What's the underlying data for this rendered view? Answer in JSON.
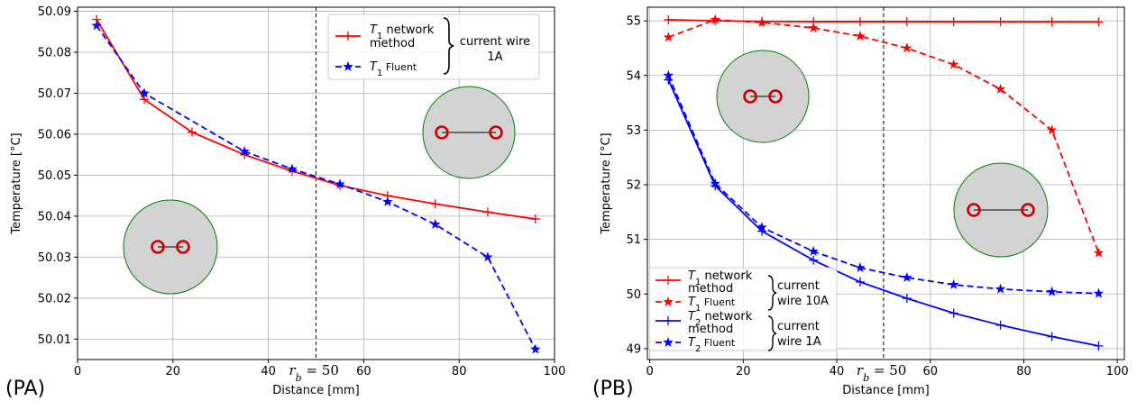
{
  "chart_data": [
    {
      "type": "line",
      "panel_label": "(PA)",
      "xlabel": "Distance [mm]",
      "ylabel": "Temperature  [°C]",
      "xlim": [
        0,
        100
      ],
      "ylim": [
        50.005,
        50.091
      ],
      "xticks": [
        0,
        20,
        40,
        60,
        80,
        100
      ],
      "yticks": [
        50.01,
        50.02,
        50.03,
        50.04,
        50.05,
        50.06,
        50.07,
        50.08,
        50.09
      ],
      "grid": true,
      "vline": {
        "x": 50,
        "label": "r_b = 50",
        "label_main": "r",
        "label_sub": "b",
        "label_rest": " = 50"
      },
      "legend_placement": "top-right",
      "legend_group": "current wire 1A",
      "series": [
        {
          "name": "T1 network method",
          "name_main": "T",
          "name_sub": "1",
          "name_rest1": " network",
          "name_rest2": "method",
          "color": "#ff0000",
          "style": "solid",
          "marker": "plus",
          "x": [
            4,
            14,
            24,
            35,
            45,
            55,
            65,
            75,
            86,
            96
          ],
          "y": [
            50.088,
            50.0685,
            50.0605,
            50.055,
            50.051,
            50.0475,
            50.045,
            50.043,
            50.041,
            50.0393
          ]
        },
        {
          "name": "T1 Fluent",
          "name_main": "T",
          "name_sub": "1",
          "name_rest1": " Fluent",
          "color": "#0000ff",
          "style": "dashed",
          "marker": "star",
          "x": [
            4,
            14,
            35,
            45,
            55,
            65,
            75,
            86,
            96
          ],
          "y": [
            50.0865,
            50.07,
            50.0558,
            50.0515,
            50.0478,
            50.0435,
            50.038,
            50.03,
            50.0075
          ]
        }
      ],
      "annotations": [
        "D",
        "D"
      ]
    },
    {
      "type": "line",
      "panel_label": "(PB)",
      "xlabel": "Distance [mm]",
      "ylabel": "Temperature  [°C]",
      "xlim": [
        -0.5,
        101.5
      ],
      "ylim": [
        48.8,
        55.25
      ],
      "xticks": [
        0,
        20,
        40,
        60,
        80,
        100
      ],
      "yticks": [
        49,
        50,
        51,
        52,
        53,
        54,
        55
      ],
      "grid": true,
      "vline": {
        "x": 50,
        "label": "r_b = 50",
        "label_main": "r",
        "label_sub": "b",
        "label_rest": " = 50"
      },
      "legend_placement": "bottom-left",
      "legend_groups": [
        {
          "label1": "current",
          "label2": "wire 10A"
        },
        {
          "label1": "current",
          "label2": "wire 1A"
        }
      ],
      "series": [
        {
          "name": "T1 network method",
          "name_main": "T",
          "name_sub": "1",
          "name_rest1": " network",
          "name_rest2": "method",
          "color": "#ff0000",
          "style": "solid",
          "marker": "plus",
          "x": [
            4,
            14,
            24,
            35,
            45,
            55,
            65,
            75,
            86,
            96
          ],
          "y": [
            55.02,
            55.0,
            54.99,
            54.985,
            54.985,
            54.985,
            54.983,
            54.983,
            54.982,
            54.98
          ]
        },
        {
          "name": "T1 Fluent",
          "name_main": "T",
          "name_sub": "1",
          "name_rest1": " Fluent",
          "color": "#ff0000",
          "style": "dashed",
          "marker": "star",
          "x": [
            4,
            14,
            24,
            35,
            45,
            55,
            65,
            75,
            86,
            96
          ],
          "y": [
            54.7,
            55.02,
            54.97,
            54.87,
            54.72,
            54.5,
            54.2,
            53.75,
            53.0,
            50.75
          ]
        },
        {
          "name": "T2 network method",
          "name_main": "T",
          "name_sub": "2",
          "name_rest1": " network",
          "name_rest2": "method",
          "color": "#0000ff",
          "style": "solid",
          "marker": "plus",
          "x": [
            4,
            14,
            24,
            35,
            45,
            55,
            65,
            75,
            86,
            96
          ],
          "y": [
            53.92,
            51.98,
            51.15,
            50.62,
            50.22,
            49.92,
            49.65,
            49.43,
            49.22,
            49.05
          ]
        },
        {
          "name": "T2 Fluent",
          "name_main": "T",
          "name_sub": "2",
          "name_rest1": " Fluent",
          "color": "#0000ff",
          "style": "dashed",
          "marker": "star",
          "x": [
            4,
            14,
            24,
            35,
            45,
            55,
            65,
            75,
            86,
            96
          ],
          "y": [
            54.0,
            52.02,
            51.22,
            50.78,
            50.48,
            50.3,
            50.17,
            50.09,
            50.04,
            50.01
          ]
        }
      ],
      "annotations": [
        "D",
        "D"
      ]
    }
  ]
}
